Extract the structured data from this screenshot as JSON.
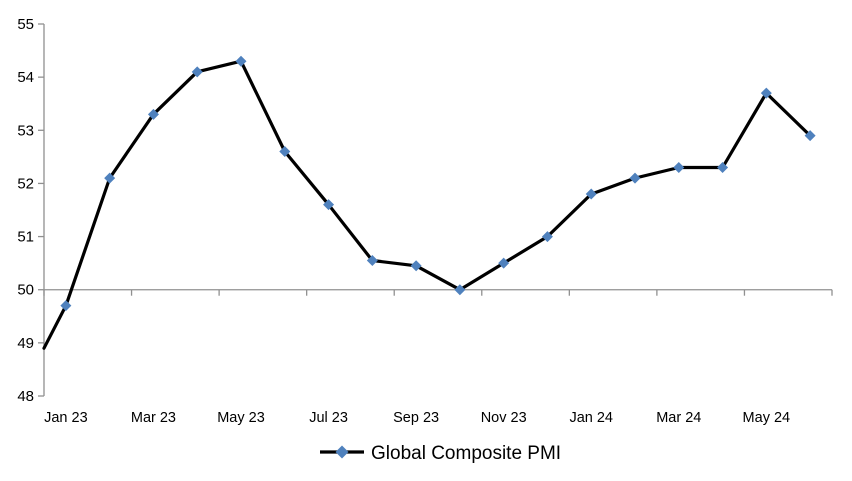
{
  "window": {
    "background_color": "#ffffff"
  },
  "chart_data": {
    "type": "line",
    "title": "",
    "legend_position": "bottom",
    "grid": false,
    "ylim": [
      48,
      55
    ],
    "y_ticks": [
      48,
      49,
      50,
      51,
      52,
      53,
      54,
      55
    ],
    "x_axis_crosses_at": 50,
    "categories": [
      "Jan 23",
      "Feb 23",
      "Mar 23",
      "Apr 23",
      "May 23",
      "Jun 23",
      "Jul 23",
      "Aug 23",
      "Sep 23",
      "Oct 23",
      "Nov 23",
      "Dec 23",
      "Jan 24",
      "Feb 24",
      "Mar 24",
      "Apr 24",
      "May 24",
      "Jun 24"
    ],
    "x_tick_labels_shown": [
      "Jan 23",
      "Mar 23",
      "May 23",
      "Jul 23",
      "Sep 23",
      "Nov 23",
      "Jan 24",
      "Mar 24",
      "May 24"
    ],
    "series": [
      {
        "name": "Global Composite PMI",
        "values": [
          49.7,
          52.1,
          53.3,
          54.1,
          54.3,
          52.6,
          51.6,
          50.55,
          50.45,
          50.0,
          50.5,
          51.0,
          51.8,
          52.1,
          52.3,
          52.3,
          53.7,
          52.9
        ],
        "lead_in_value_at_left_edge": 48.9,
        "marker": "diamond",
        "marker_color": "#4F81BD",
        "line_color": "#000000"
      }
    ],
    "axis_color": "#909090",
    "text_color": "#000000"
  }
}
